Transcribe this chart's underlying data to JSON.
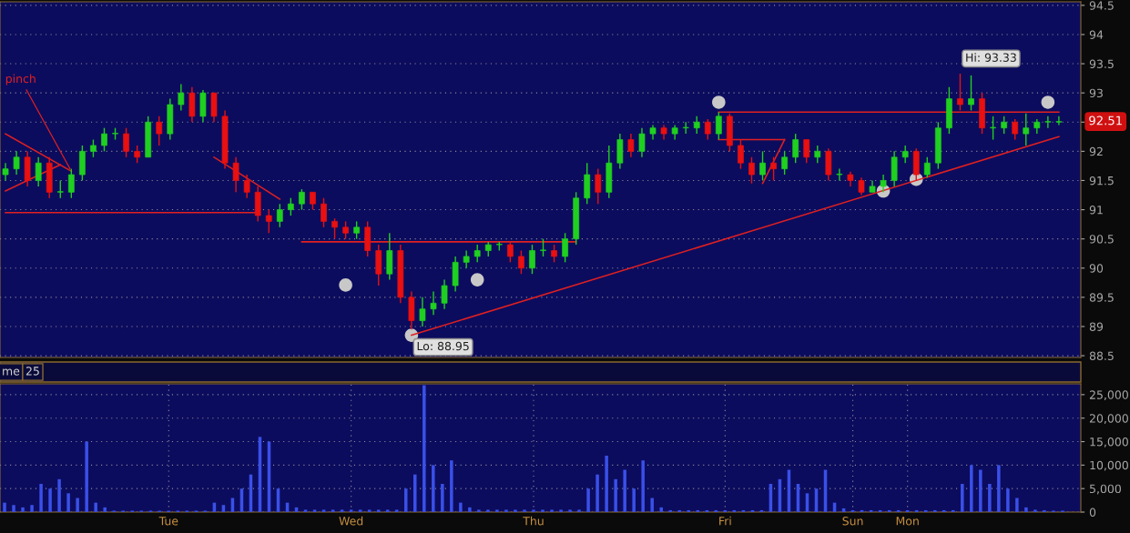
{
  "chart_data": [
    {
      "type": "candlestick",
      "categories": [
        null,
        null,
        null,
        null,
        null,
        null,
        null,
        null,
        null,
        null,
        null,
        null,
        null,
        null,
        null,
        null,
        null,
        null,
        null,
        null,
        null,
        null,
        null,
        null,
        null,
        null,
        null,
        null,
        null,
        null,
        null,
        null,
        null,
        null,
        null,
        null,
        null,
        null,
        null,
        null,
        null,
        null,
        null,
        null,
        null,
        null,
        null,
        null,
        null,
        null,
        null,
        null,
        null,
        null,
        null,
        null,
        null,
        null,
        null,
        null,
        null,
        null,
        null,
        null,
        null,
        null,
        null,
        null,
        null,
        null,
        null,
        null,
        null,
        null,
        null,
        null,
        null,
        null,
        null,
        null,
        null,
        null,
        null,
        null,
        null,
        null,
        null,
        null,
        null,
        null,
        null,
        null,
        null,
        null,
        null,
        null,
        null
      ],
      "ohlc": [
        [
          91.6,
          91.8,
          91.5,
          91.7
        ],
        [
          91.7,
          92.0,
          91.6,
          91.9
        ],
        [
          91.9,
          92.0,
          91.4,
          91.5
        ],
        [
          91.5,
          91.9,
          91.4,
          91.8
        ],
        [
          91.8,
          91.9,
          91.2,
          91.3
        ],
        [
          91.3,
          91.5,
          91.2,
          91.3
        ],
        [
          91.3,
          91.7,
          91.2,
          91.6
        ],
        [
          91.6,
          92.1,
          91.5,
          92.0
        ],
        [
          92.0,
          92.2,
          91.9,
          92.1
        ],
        [
          92.1,
          92.4,
          92.0,
          92.3
        ],
        [
          92.3,
          92.4,
          92.2,
          92.3
        ],
        [
          92.3,
          92.4,
          91.9,
          92.0
        ],
        [
          92.0,
          92.1,
          91.8,
          91.9
        ],
        [
          91.9,
          92.6,
          91.9,
          92.5
        ],
        [
          92.5,
          92.6,
          92.1,
          92.3
        ],
        [
          92.3,
          92.9,
          92.2,
          92.8
        ],
        [
          92.8,
          93.15,
          92.7,
          93.0
        ],
        [
          93.0,
          93.1,
          92.5,
          92.6
        ],
        [
          92.6,
          93.05,
          92.5,
          93.0
        ],
        [
          93.0,
          93.0,
          92.5,
          92.6
        ],
        [
          92.6,
          92.7,
          91.7,
          91.8
        ],
        [
          91.8,
          91.9,
          91.3,
          91.5
        ],
        [
          91.5,
          91.6,
          91.2,
          91.3
        ],
        [
          91.3,
          91.4,
          90.8,
          90.9
        ],
        [
          90.9,
          91.0,
          90.6,
          90.8
        ],
        [
          90.8,
          91.1,
          90.7,
          91.0
        ],
        [
          91.0,
          91.2,
          90.9,
          91.1
        ],
        [
          91.1,
          91.35,
          91.0,
          91.3
        ],
        [
          91.3,
          91.3,
          91.0,
          91.1
        ],
        [
          91.1,
          91.2,
          90.7,
          90.8
        ],
        [
          90.8,
          90.85,
          90.5,
          90.7
        ],
        [
          90.7,
          90.8,
          90.5,
          90.6
        ],
        [
          90.6,
          90.8,
          90.5,
          90.7
        ],
        [
          90.7,
          90.8,
          90.2,
          90.3
        ],
        [
          90.3,
          90.4,
          89.7,
          89.9
        ],
        [
          89.9,
          90.6,
          89.8,
          90.3
        ],
        [
          90.3,
          90.4,
          89.4,
          89.5
        ],
        [
          89.5,
          89.6,
          88.95,
          89.1
        ],
        [
          89.1,
          89.5,
          89.0,
          89.3
        ],
        [
          89.3,
          89.6,
          89.2,
          89.4
        ],
        [
          89.4,
          89.8,
          89.3,
          89.7
        ],
        [
          89.7,
          90.2,
          89.6,
          90.1
        ],
        [
          90.1,
          90.3,
          90.0,
          90.2
        ],
        [
          90.2,
          90.4,
          90.1,
          90.3
        ],
        [
          90.3,
          90.45,
          90.2,
          90.4
        ],
        [
          90.4,
          90.45,
          90.3,
          90.4
        ],
        [
          90.4,
          90.45,
          90.1,
          90.2
        ],
        [
          90.2,
          90.3,
          89.9,
          90.0
        ],
        [
          90.0,
          90.4,
          89.9,
          90.3
        ],
        [
          90.3,
          90.5,
          90.2,
          90.3
        ],
        [
          90.3,
          90.4,
          90.1,
          90.2
        ],
        [
          90.2,
          90.6,
          90.1,
          90.5
        ],
        [
          90.5,
          91.3,
          90.4,
          91.2
        ],
        [
          91.2,
          91.8,
          91.1,
          91.6
        ],
        [
          91.6,
          91.7,
          91.1,
          91.3
        ],
        [
          91.3,
          92.1,
          91.2,
          91.8
        ],
        [
          91.8,
          92.3,
          91.7,
          92.2
        ],
        [
          92.2,
          92.3,
          91.9,
          92.0
        ],
        [
          92.0,
          92.4,
          91.9,
          92.3
        ],
        [
          92.3,
          92.45,
          92.2,
          92.4
        ],
        [
          92.4,
          92.45,
          92.2,
          92.3
        ],
        [
          92.3,
          92.45,
          92.2,
          92.4
        ],
        [
          92.4,
          92.5,
          92.3,
          92.4
        ],
        [
          92.4,
          92.6,
          92.3,
          92.5
        ],
        [
          92.5,
          92.55,
          92.2,
          92.3
        ],
        [
          92.3,
          92.67,
          92.2,
          92.6
        ],
        [
          92.6,
          92.65,
          92.0,
          92.1
        ],
        [
          92.1,
          92.2,
          91.7,
          91.8
        ],
        [
          91.8,
          91.9,
          91.45,
          91.6
        ],
        [
          91.6,
          92.0,
          91.5,
          91.8
        ],
        [
          91.8,
          91.9,
          91.5,
          91.7
        ],
        [
          91.7,
          92.0,
          91.6,
          91.9
        ],
        [
          91.9,
          92.3,
          91.8,
          92.2
        ],
        [
          92.2,
          92.2,
          91.8,
          91.9
        ],
        [
          91.9,
          92.1,
          91.8,
          92.0
        ],
        [
          92.0,
          92.05,
          91.5,
          91.6
        ],
        [
          91.6,
          91.7,
          91.5,
          91.6
        ],
        [
          91.6,
          91.65,
          91.4,
          91.5
        ],
        [
          91.5,
          91.55,
          91.25,
          91.3
        ],
        [
          91.3,
          91.5,
          91.3,
          91.4
        ],
        [
          91.4,
          91.6,
          91.3,
          91.5
        ],
        [
          91.5,
          92.0,
          91.4,
          91.9
        ],
        [
          91.9,
          92.1,
          91.8,
          92.0
        ],
        [
          92.0,
          92.05,
          91.5,
          91.6
        ],
        [
          91.6,
          91.9,
          91.55,
          91.8
        ],
        [
          91.8,
          92.5,
          91.7,
          92.4
        ],
        [
          92.4,
          93.1,
          92.3,
          92.9
        ],
        [
          92.9,
          93.33,
          92.7,
          92.8
        ],
        [
          92.8,
          93.3,
          92.7,
          92.9
        ],
        [
          92.9,
          93.0,
          92.3,
          92.4
        ],
        [
          92.4,
          92.6,
          92.2,
          92.4
        ],
        [
          92.4,
          92.6,
          92.3,
          92.5
        ],
        [
          92.5,
          92.55,
          92.2,
          92.3
        ],
        [
          92.3,
          92.65,
          92.1,
          92.4
        ],
        [
          92.4,
          92.55,
          92.3,
          92.5
        ],
        [
          92.5,
          92.6,
          92.4,
          92.5
        ],
        [
          92.5,
          92.6,
          92.45,
          92.51
        ]
      ],
      "series": [
        {
          "type": "line",
          "color": "#e02020",
          "values": [
            90.95,
            null,
            null,
            null,
            null,
            null,
            null,
            null,
            null,
            null,
            null,
            null,
            null,
            null,
            null,
            null,
            null,
            null,
            null,
            null,
            null,
            null,
            null,
            90.95,
            null,
            null,
            null,
            null,
            null,
            null,
            null,
            null,
            null,
            null,
            null,
            null,
            null,
            null,
            null,
            null,
            null,
            null,
            null,
            null,
            null,
            null,
            null,
            null,
            null,
            null,
            null,
            null,
            null,
            null,
            null,
            null,
            null,
            null,
            null,
            null,
            null,
            null,
            null,
            null,
            null,
            null,
            null,
            null,
            null,
            null,
            null,
            null,
            null,
            null,
            null,
            null,
            null,
            null,
            null,
            null,
            null,
            null,
            null,
            null,
            null,
            null,
            null,
            null,
            null,
            null,
            null,
            null,
            null,
            null,
            null,
            null,
            null
          ]
        },
        {
          "type": "line",
          "color": "#e02020",
          "values": [
            null,
            null,
            null,
            null,
            null,
            null,
            null,
            null,
            null,
            null,
            null,
            null,
            null,
            null,
            null,
            null,
            null,
            null,
            null,
            null,
            null,
            null,
            null,
            null,
            null,
            null,
            null,
            90.45,
            null,
            null,
            null,
            null,
            null,
            null,
            null,
            null,
            null,
            null,
            null,
            null,
            null,
            null,
            null,
            null,
            null,
            null,
            null,
            null,
            null,
            null,
            null,
            null,
            90.45,
            null,
            null,
            null,
            null,
            null,
            null,
            null,
            null,
            null,
            null,
            null,
            null,
            null,
            null,
            null,
            null,
            null,
            null,
            null,
            null,
            null,
            null,
            null,
            null,
            null,
            null,
            null,
            null,
            null,
            null,
            null,
            null,
            null,
            null,
            null,
            null,
            null,
            null,
            null,
            null,
            null,
            null,
            null,
            null
          ]
        },
        {
          "type": "line",
          "color": "#e02020",
          "values": [
            null,
            null,
            null,
            null,
            null,
            null,
            null,
            null,
            null,
            null,
            null,
            null,
            null,
            null,
            null,
            null,
            null,
            null,
            null,
            null,
            null,
            null,
            null,
            null,
            null,
            null,
            null,
            null,
            null,
            null,
            null,
            null,
            null,
            null,
            null,
            null,
            null,
            null,
            null,
            null,
            null,
            null,
            null,
            null,
            null,
            null,
            null,
            null,
            null,
            null,
            null,
            null,
            null,
            null,
            null,
            null,
            null,
            null,
            null,
            null,
            null,
            null,
            null,
            null,
            null,
            92.67,
            null,
            null,
            null,
            null,
            null,
            null,
            null,
            null,
            null,
            null,
            null,
            null,
            null,
            null,
            null,
            null,
            null,
            null,
            null,
            null,
            null,
            null,
            null,
            null,
            null,
            null,
            null,
            null,
            null,
            null,
            92.67
          ]
        },
        {
          "type": "line",
          "color": "#e02020",
          "values": [
            null,
            null,
            null,
            null,
            null,
            null,
            null,
            null,
            null,
            null,
            null,
            null,
            null,
            null,
            null,
            null,
            null,
            null,
            null,
            null,
            null,
            null,
            null,
            null,
            null,
            null,
            null,
            null,
            null,
            null,
            null,
            null,
            null,
            null,
            null,
            null,
            null,
            null,
            null,
            null,
            null,
            null,
            null,
            null,
            null,
            null,
            null,
            null,
            null,
            null,
            null,
            null,
            null,
            null,
            null,
            null,
            null,
            null,
            null,
            null,
            null,
            null,
            null,
            null,
            null,
            92.2,
            null,
            null,
            null,
            null,
            null,
            92.2,
            null,
            null,
            null,
            null,
            null,
            null,
            null,
            null,
            null,
            null,
            null,
            null,
            null,
            null,
            null,
            null,
            null,
            null,
            null,
            null,
            null,
            null,
            null,
            null,
            null
          ]
        },
        {
          "type": "line",
          "color": "#e02020",
          "values": [
            null,
            null,
            null,
            null,
            null,
            null,
            null,
            null,
            null,
            null,
            null,
            null,
            null,
            null,
            null,
            null,
            null,
            null,
            null,
            null,
            null,
            null,
            null,
            null,
            null,
            null,
            null,
            null,
            null,
            null,
            null,
            null,
            null,
            null,
            null,
            null,
            null,
            88.85,
            null,
            null,
            null,
            null,
            null,
            null,
            null,
            null,
            null,
            null,
            null,
            null,
            null,
            null,
            null,
            null,
            null,
            null,
            null,
            null,
            null,
            null,
            null,
            null,
            null,
            null,
            null,
            null,
            null,
            null,
            null,
            null,
            null,
            null,
            null,
            null,
            null,
            null,
            null,
            null,
            null,
            null,
            null,
            null,
            null,
            null,
            null,
            null,
            null,
            null,
            null,
            null,
            null,
            null,
            null,
            null,
            null,
            null,
            92.25
          ]
        },
        {
          "type": "line",
          "color": "#e02020",
          "values": [
            92.3,
            null,
            null,
            null,
            null,
            null,
            91.66,
            null,
            null,
            null,
            null,
            null,
            null,
            null,
            null,
            null,
            null,
            null,
            null,
            null,
            null,
            null,
            null,
            null,
            null,
            null,
            null,
            null,
            null,
            null,
            null,
            null,
            null,
            null,
            null,
            null,
            null,
            null,
            null,
            null,
            null,
            null,
            null,
            null,
            null,
            null,
            null,
            null,
            null,
            null,
            null,
            null,
            null,
            null,
            null,
            null,
            null,
            null,
            null,
            null,
            null,
            null,
            null,
            null,
            null,
            null,
            null,
            null,
            null,
            null,
            null,
            null,
            null,
            null,
            null,
            null,
            null,
            null,
            null,
            null,
            null,
            null,
            null,
            null,
            null,
            null,
            null,
            null,
            null,
            null,
            null,
            null,
            null,
            null,
            null,
            null,
            null
          ]
        },
        {
          "type": "line",
          "color": "#e02020",
          "values": [
            91.32,
            null,
            null,
            null,
            null,
            91.77,
            null,
            null,
            null,
            null,
            null,
            null,
            null,
            null,
            null,
            null,
            null,
            null,
            null,
            null,
            null,
            null,
            null,
            null,
            null,
            null,
            null,
            null,
            null,
            null,
            null,
            null,
            null,
            null,
            null,
            null,
            null,
            null,
            null,
            null,
            null,
            null,
            null,
            null,
            null,
            null,
            null,
            null,
            null,
            null,
            null,
            null,
            null,
            null,
            null,
            null,
            null,
            null,
            null,
            null,
            null,
            null,
            null,
            null,
            null,
            null,
            null,
            null,
            null,
            null,
            null,
            null,
            null,
            null,
            null,
            null,
            null,
            null,
            null,
            null,
            null,
            null,
            null,
            null,
            null,
            null,
            null,
            null,
            null,
            null,
            null,
            null,
            null,
            null,
            null,
            null,
            null
          ]
        },
        {
          "type": "line",
          "color": "#e02020",
          "values": [
            null,
            null,
            null,
            null,
            null,
            null,
            null,
            null,
            null,
            null,
            null,
            null,
            null,
            null,
            null,
            null,
            null,
            null,
            null,
            91.9,
            null,
            null,
            null,
            null,
            null,
            91.18,
            null,
            null,
            null,
            null,
            null,
            null,
            null,
            null,
            null,
            null,
            null,
            null,
            null,
            null,
            null,
            null,
            null,
            null,
            null,
            null,
            null,
            null,
            null,
            null,
            null,
            null,
            null,
            null,
            null,
            null,
            null,
            null,
            null,
            null,
            null,
            null,
            null,
            null,
            null,
            null,
            null,
            null,
            null,
            null,
            null,
            null,
            null,
            null,
            null,
            null,
            null,
            null,
            null,
            null,
            null,
            null,
            null,
            null,
            null,
            null,
            null,
            null,
            null,
            null,
            null,
            null,
            null,
            null,
            null,
            null,
            null
          ]
        },
        {
          "type": "line",
          "color": "#e02020",
          "values": [
            null,
            null,
            null,
            null,
            null,
            null,
            null,
            null,
            null,
            null,
            null,
            null,
            null,
            null,
            null,
            null,
            null,
            null,
            null,
            null,
            null,
            null,
            null,
            null,
            null,
            null,
            null,
            null,
            null,
            null,
            null,
            null,
            null,
            null,
            null,
            null,
            null,
            null,
            null,
            null,
            null,
            null,
            null,
            null,
            null,
            null,
            null,
            null,
            null,
            null,
            null,
            null,
            null,
            null,
            null,
            null,
            null,
            null,
            null,
            null,
            null,
            null,
            null,
            null,
            null,
            null,
            null,
            null,
            null,
            91.45,
            null,
            92.2,
            null,
            null,
            null,
            null,
            null,
            null,
            null,
            null,
            null,
            null,
            null,
            null,
            null,
            null,
            null,
            null,
            null,
            null,
            null,
            null,
            null,
            null,
            null,
            null,
            null
          ]
        },
        {
          "type": "scatter",
          "color": "#c8c8c8",
          "values": [
            null,
            null,
            null,
            null,
            null,
            null,
            null,
            null,
            null,
            null,
            null,
            null,
            null,
            null,
            null,
            null,
            null,
            null,
            null,
            null,
            null,
            null,
            null,
            null,
            null,
            null,
            null,
            null,
            null,
            null,
            null,
            89.71,
            null,
            null,
            null,
            null,
            null,
            88.85,
            null,
            null,
            null,
            null,
            null,
            89.8,
            null,
            null,
            null,
            null,
            null,
            null,
            null,
            null,
            null,
            null,
            null,
            null,
            null,
            null,
            null,
            null,
            null,
            null,
            null,
            null,
            null,
            92.84,
            null,
            null,
            null,
            null,
            null,
            null,
            null,
            null,
            null,
            null,
            null,
            null,
            null,
            null,
            91.32,
            null,
            null,
            91.52,
            null,
            null,
            null,
            null,
            null,
            null,
            null,
            null,
            null,
            null,
            null,
            92.84,
            null
          ]
        }
      ],
      "annotations": [
        "Hi: 93.33",
        "Lo: 88.95",
        "pinch",
        "92.51"
      ],
      "ylim": [
        88.47,
        94.56
      ],
      "yticks": [
        88.5,
        89,
        89.5,
        90,
        90.5,
        91,
        91.5,
        92,
        {
          "value": 92.5,
          "label": null
        },
        93,
        93.5,
        94,
        94.5
      ],
      "tick_labels": "y",
      "grid": "y"
    },
    {
      "type": "bar",
      "color": "#3a50e8",
      "annotations": [
        "me",
        "25"
      ],
      "categories": [
        null,
        null,
        null,
        null,
        null,
        null,
        null,
        null,
        null,
        null,
        null,
        null,
        null,
        null,
        null,
        null,
        null,
        null,
        "Tue",
        null,
        null,
        null,
        null,
        null,
        null,
        null,
        null,
        null,
        null,
        null,
        null,
        null,
        null,
        null,
        null,
        null,
        null,
        null,
        "Wed",
        null,
        null,
        null,
        null,
        null,
        null,
        null,
        null,
        null,
        null,
        null,
        null,
        null,
        null,
        null,
        null,
        null,
        null,
        null,
        "Thu",
        null,
        null,
        null,
        null,
        null,
        null,
        null,
        null,
        null,
        null,
        null,
        null,
        null,
        null,
        null,
        null,
        null,
        null,
        null,
        null,
        "Fri",
        null,
        null,
        null,
        null,
        null,
        null,
        null,
        null,
        null,
        null,
        null,
        null,
        null,
        "Sun",
        null,
        null,
        null,
        null,
        null,
        "Mon",
        null,
        null,
        null,
        null,
        null,
        null,
        null,
        null,
        null,
        null,
        null,
        null,
        null,
        null,
        null,
        null,
        null
      ],
      "values": [
        2000,
        1500,
        1000,
        1500,
        6000,
        5000,
        7000,
        4000,
        3000,
        15000,
        2000,
        1000,
        300,
        300,
        300,
        300,
        300,
        300,
        300,
        300,
        300,
        300,
        300,
        2000,
        1500,
        3000,
        5000,
        8000,
        16000,
        15000,
        5000,
        2000,
        1000,
        500,
        500,
        500,
        500,
        500,
        500,
        500,
        500,
        500,
        500,
        500,
        5000,
        8000,
        27000,
        10000,
        6000,
        11000,
        2000,
        1000,
        500,
        500,
        500,
        500,
        500,
        500,
        500,
        500,
        500,
        500,
        500,
        500,
        5000,
        8000,
        12000,
        7000,
        9000,
        5000,
        11000,
        3000,
        1000,
        400,
        400,
        400,
        400,
        400,
        400,
        400,
        400,
        400,
        400,
        400,
        6000,
        7000,
        9000,
        6000,
        4000,
        5000,
        9000,
        2000,
        800,
        400,
        400,
        400,
        400,
        400,
        400,
        400,
        400,
        400,
        400,
        400,
        400,
        6000,
        10000,
        9000,
        6000,
        10000,
        5000,
        3000,
        1000,
        500,
        400,
        300,
        300
      ],
      "ylim": [
        0,
        27300
      ],
      "yticks": [
        0,
        {
          "value": 5000,
          "label": "5,000"
        },
        {
          "value": 10000,
          "label": "10,000"
        },
        {
          "value": 15000,
          "label": "15,000"
        },
        {
          "value": 20000,
          "label": "20,000"
        },
        {
          "value": 25000,
          "label": "25,000"
        }
      ],
      "grid": true
    }
  ]
}
